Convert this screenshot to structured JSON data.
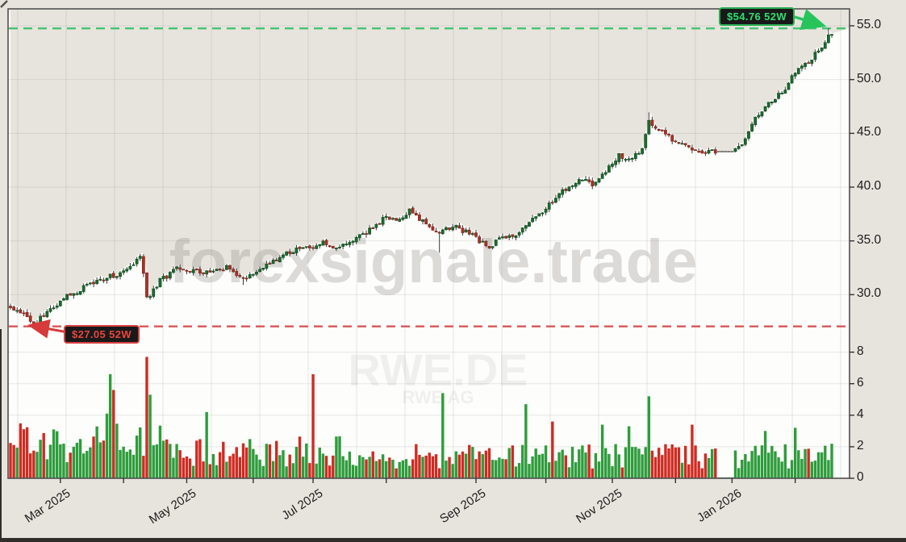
{
  "watermarks": {
    "main": "forexsignale.trade",
    "symbol": "RWE.DE",
    "subtitle": "RWE AG"
  },
  "annotations": {
    "high": {
      "label": "$54.76 52W",
      "value": 54.76
    },
    "low": {
      "label": "$27.05 52W",
      "value": 27.05
    }
  },
  "axes": {
    "price_ticks": [
      {
        "value": 55,
        "label": "55.0"
      },
      {
        "value": 50,
        "label": "50.0"
      },
      {
        "value": 45,
        "label": "45.0"
      },
      {
        "value": 40,
        "label": "40.0"
      },
      {
        "value": 35,
        "label": "35.0"
      },
      {
        "value": 30,
        "label": "30.0"
      }
    ],
    "volume_ticks": [
      {
        "value": 8,
        "label": "8"
      },
      {
        "value": 6,
        "label": "6"
      },
      {
        "value": 4,
        "label": "4"
      },
      {
        "value": 2,
        "label": "2"
      },
      {
        "value": 0,
        "label": "0"
      }
    ],
    "x_ticks": [
      {
        "index": 15,
        "label": "Mar 2025",
        "labeled": true
      },
      {
        "index": 34,
        "label": "",
        "labeled": false
      },
      {
        "index": 53,
        "label": "May 2025",
        "labeled": true
      },
      {
        "index": 73,
        "label": "",
        "labeled": false
      },
      {
        "index": 91,
        "label": "Jul 2025",
        "labeled": true
      },
      {
        "index": 113,
        "label": "",
        "labeled": false
      },
      {
        "index": 140,
        "label": "Sep 2025",
        "labeled": true
      },
      {
        "index": 161,
        "label": "",
        "labeled": false
      },
      {
        "index": 181,
        "label": "Nov 2025",
        "labeled": true
      },
      {
        "index": 200,
        "label": "",
        "labeled": false
      },
      {
        "index": 217,
        "label": "Jan 2026",
        "labeled": true
      },
      {
        "index": 236,
        "label": "",
        "labeled": false
      }
    ]
  },
  "chart_data": {
    "type": "candlestick+volume-bar",
    "symbol": "RWE.DE",
    "company": "RWE AG",
    "high_52w": 54.76,
    "low_52w": 27.05,
    "price_axis_range": [
      26.3,
      56.6
    ],
    "volume_axis_range": [
      0,
      8.85
    ],
    "num_candles": 248,
    "close_anchors": [
      [
        0,
        28.8
      ],
      [
        4,
        28.1
      ],
      [
        7,
        27.3
      ],
      [
        11,
        28.3
      ],
      [
        16,
        29.8
      ],
      [
        22,
        30.6
      ],
      [
        29,
        31.6
      ],
      [
        34,
        32.0
      ],
      [
        39,
        33.4
      ],
      [
        40,
        31.8
      ],
      [
        41,
        29.6
      ],
      [
        45,
        31.3
      ],
      [
        50,
        32.4
      ],
      [
        54,
        32.3
      ],
      [
        60,
        32.0
      ],
      [
        66,
        32.6
      ],
      [
        70,
        31.4
      ],
      [
        75,
        32.2
      ],
      [
        81,
        33.6
      ],
      [
        86,
        34.3
      ],
      [
        91,
        34.2
      ],
      [
        94,
        34.8
      ],
      [
        99,
        34.4
      ],
      [
        104,
        35.2
      ],
      [
        109,
        36.2
      ],
      [
        113,
        37.3
      ],
      [
        117,
        37.0
      ],
      [
        120,
        37.8
      ],
      [
        125,
        36.5
      ],
      [
        129,
        35.6
      ],
      [
        133,
        36.4
      ],
      [
        137,
        35.8
      ],
      [
        140,
        35.3
      ],
      [
        144,
        34.3
      ],
      [
        148,
        35.4
      ],
      [
        152,
        35.6
      ],
      [
        156,
        36.6
      ],
      [
        160,
        37.8
      ],
      [
        164,
        38.9
      ],
      [
        168,
        40.2
      ],
      [
        172,
        40.6
      ],
      [
        175,
        40.3
      ],
      [
        179,
        41.6
      ],
      [
        183,
        42.9
      ],
      [
        187,
        42.7
      ],
      [
        190,
        43.5
      ],
      [
        192,
        46.2
      ],
      [
        193,
        45.6
      ],
      [
        195,
        45.2
      ],
      [
        199,
        44.4
      ],
      [
        202,
        43.9
      ],
      [
        205,
        43.6
      ],
      [
        208,
        43.4
      ],
      [
        212,
        43.3
      ],
      [
        217,
        43.3
      ],
      [
        218,
        43.4
      ],
      [
        221,
        44.6
      ],
      [
        224,
        46.4
      ],
      [
        227,
        47.5
      ],
      [
        230,
        48.3
      ],
      [
        233,
        49.2
      ],
      [
        236,
        50.6
      ],
      [
        239,
        51.3
      ],
      [
        242,
        52.4
      ],
      [
        245,
        53.6
      ],
      [
        246,
        54.4
      ],
      [
        247,
        54.0
      ]
    ],
    "wick_lows": [
      [
        7,
        27.05
      ],
      [
        70,
        30.9
      ],
      [
        129,
        33.9
      ],
      [
        175,
        39.8
      ]
    ],
    "wick_highs": [
      [
        39,
        33.8
      ],
      [
        192,
        46.95
      ],
      [
        246,
        54.76
      ]
    ],
    "volume_spikes": [
      [
        29,
        4.1
      ],
      [
        30,
        6.6
      ],
      [
        31,
        5.6
      ],
      [
        41,
        7.7
      ],
      [
        42,
        5.3
      ],
      [
        59,
        4.2
      ],
      [
        91,
        6.6
      ],
      [
        130,
        5.4
      ],
      [
        155,
        4.7
      ],
      [
        163,
        3.6
      ],
      [
        178,
        3.4
      ],
      [
        186,
        3.3
      ],
      [
        192,
        5.2
      ],
      [
        205,
        3.4
      ],
      [
        227,
        3.0
      ],
      [
        236,
        3.2
      ]
    ],
    "flat_gap": [
      213,
      217
    ],
    "colors": {
      "up_body": "#1c6b2d",
      "up_edge": "#0e4a1f",
      "down_body": "#a93226",
      "down_edge": "#7c241b",
      "wick": "#3a3a3a",
      "vol_up": "#2e9c3c",
      "vol_down": "#cf2b22",
      "high_line": "#43c472",
      "low_line": "#d95555",
      "area_fill": "#e7e4dd",
      "plot_bg": "#fdfdfb",
      "grid": "#dcdcd8",
      "frame": "#4f4f4f"
    }
  }
}
